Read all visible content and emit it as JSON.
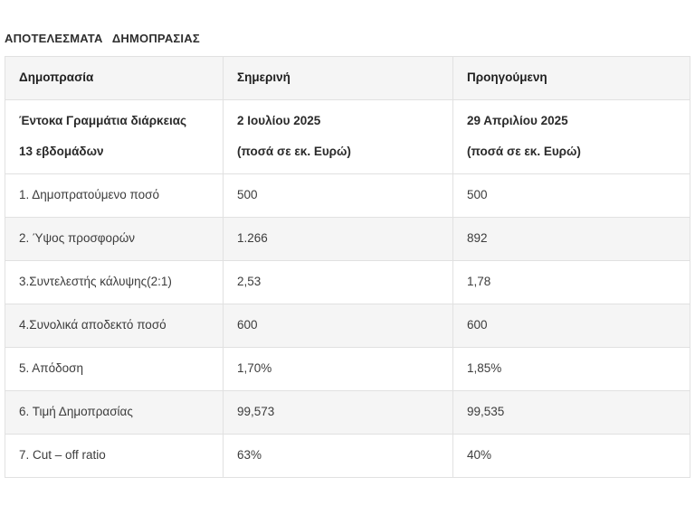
{
  "page_title": "ΑΠΟΤΕΛΕΣΜΑΤΑ ΔΗΜΟΠΡΑΣΙΑΣ",
  "table": {
    "header": [
      "Δημοπρασία",
      "Σημερινή",
      "Προηγούμενη"
    ],
    "subheader": {
      "col1": [
        "Έντοκα Γραμμάτια διάρκειας",
        "13 εβδομάδων"
      ],
      "col2": [
        "2 Ιουλίου 2025",
        "(ποσά σε εκ. Ευρώ)"
      ],
      "col3": [
        "29 Απριλίου 2025",
        "(ποσά σε εκ. Ευρώ)"
      ]
    },
    "rows": [
      {
        "label": "1. Δημοπρατούμενο ποσό",
        "current": "500",
        "previous": "500"
      },
      {
        "label": "2. Ύψος προσφορών",
        "current": "1.266",
        "previous": "892"
      },
      {
        "label": "3.Συντελεστής κάλυψης(2:1)",
        "current": "2,53",
        "previous": "1,78"
      },
      {
        "label": "4.Συνολικά αποδεκτό ποσό",
        "current": "600",
        "previous": "600"
      },
      {
        "label": "5. Απόδοση",
        "current": "1,70%",
        "previous": "1,85%"
      },
      {
        "label": "6. Τιμή Δημοπρασίας",
        "current": "99,573",
        "previous": "99,535"
      },
      {
        "label": "7. Cut – off ratio",
        "current": "63%",
        "previous": "40%"
      }
    ]
  },
  "colors": {
    "row_stripe": "#f5f5f5",
    "row_white": "#ffffff",
    "border": "#e1e1e1",
    "text": "#3c3c3c",
    "heading_text": "#1f1f1f"
  }
}
